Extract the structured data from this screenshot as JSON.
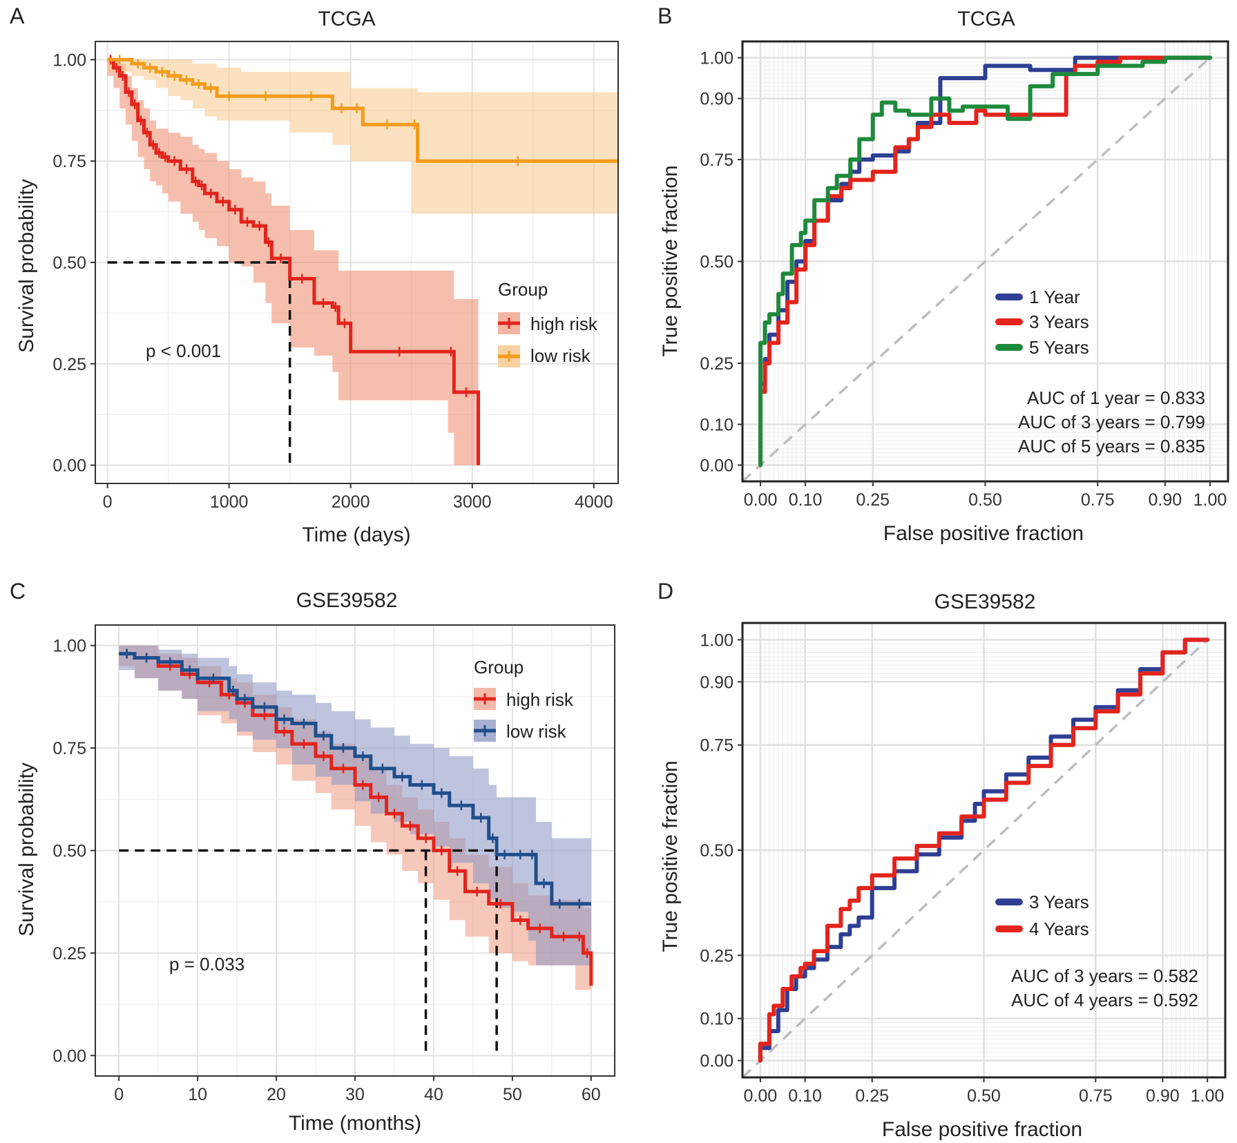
{
  "panels": [
    {
      "id": "A",
      "letter": "A",
      "title": "TCGA",
      "kind": "km",
      "xlabel": "Time (days)",
      "ylabel": "Survival probability",
      "xlim": [
        -100,
        4200
      ],
      "xticks": [
        0,
        1000,
        2000,
        3000,
        4000
      ],
      "xtick_labels": [
        "0",
        "1000",
        "2000",
        "3000",
        "4000"
      ],
      "ylim": [
        -0.045,
        1.045
      ],
      "yticks": [
        0,
        0.25,
        0.5,
        0.75,
        1
      ],
      "ytick_labels": [
        "0.00",
        "0.25",
        "0.50",
        "0.75",
        "1.00"
      ],
      "pvalue": "p < 0.001",
      "legend": {
        "title": "Group",
        "items": [
          "high risk",
          "low risk"
        ]
      },
      "median_lines": [
        1500
      ]
    },
    {
      "id": "B",
      "letter": "B",
      "title": "TCGA",
      "kind": "roc",
      "xlabel": "False positive fraction",
      "ylabel": "True positive fraction",
      "ticks": [
        0,
        0.1,
        0.25,
        0.5,
        0.75,
        0.9,
        1
      ],
      "tick_labels": [
        "0.00",
        "0.10",
        "0.25",
        "0.50",
        "0.75",
        "0.90",
        "1.00"
      ],
      "legend": {
        "items": [
          "1 Year",
          "3 Years",
          "5 Years"
        ]
      },
      "auc_texts": [
        "AUC of 1 year = 0.833",
        "AUC of 3 years = 0.799",
        "AUC of 5 years = 0.835"
      ]
    },
    {
      "id": "C",
      "letter": "C",
      "title": "GSE39582",
      "kind": "km",
      "xlabel": "Time (months)",
      "ylabel": "Survival probability",
      "xlim": [
        -3,
        63
      ],
      "xticks": [
        0,
        10,
        20,
        30,
        40,
        50,
        60
      ],
      "xtick_labels": [
        "0",
        "10",
        "20",
        "30",
        "40",
        "50",
        "60"
      ],
      "ylim": [
        -0.05,
        1.05
      ],
      "yticks": [
        0,
        0.25,
        0.5,
        0.75,
        1
      ],
      "ytick_labels": [
        "0.00",
        "0.25",
        "0.50",
        "0.75",
        "1.00"
      ],
      "pvalue": "p = 0.033",
      "legend": {
        "title": "Group",
        "items": [
          "high risk",
          "low risk"
        ]
      },
      "median_lines": [
        39,
        48
      ]
    },
    {
      "id": "D",
      "letter": "D",
      "title": "GSE39582",
      "kind": "roc",
      "xlabel": "False positive fraction",
      "ylabel": "True positive fraction",
      "ticks": [
        0,
        0.1,
        0.25,
        0.5,
        0.75,
        0.9,
        1
      ],
      "tick_labels": [
        "0.00",
        "0.10",
        "0.25",
        "0.50",
        "0.75",
        "0.90",
        "1.00"
      ],
      "legend": {
        "items": [
          "3 Years",
          "4 Years"
        ]
      },
      "auc_texts": [
        "AUC of 3 years = 0.582",
        "AUC of 4 years = 0.592"
      ]
    }
  ],
  "chart_data": [
    {
      "panel": "A",
      "type": "line",
      "title": "TCGA",
      "xlabel": "Time (days)",
      "ylabel": "Survival probability",
      "xlim": [
        -100,
        4200
      ],
      "ylim": [
        0,
        1
      ],
      "grid": true,
      "legend_position": "right",
      "annotation": "p < 0.001",
      "series": [
        {
          "name": "high risk",
          "color": "#e3241c",
          "band_color": "#ef8a6a",
          "x": [
            0,
            50,
            100,
            150,
            200,
            250,
            300,
            350,
            400,
            450,
            500,
            600,
            700,
            750,
            800,
            900,
            1000,
            1100,
            1200,
            1300,
            1350,
            1500,
            1700,
            1850,
            1900,
            2000,
            2800,
            2850,
            3050
          ],
          "y": [
            1.0,
            0.98,
            0.96,
            0.92,
            0.89,
            0.85,
            0.82,
            0.79,
            0.77,
            0.76,
            0.75,
            0.73,
            0.7,
            0.69,
            0.67,
            0.65,
            0.63,
            0.6,
            0.59,
            0.55,
            0.51,
            0.46,
            0.4,
            0.39,
            0.35,
            0.28,
            0.28,
            0.18,
            0.0
          ],
          "lower": [
            1.0,
            0.96,
            0.93,
            0.88,
            0.84,
            0.8,
            0.76,
            0.73,
            0.7,
            0.69,
            0.67,
            0.65,
            0.62,
            0.6,
            0.58,
            0.56,
            0.54,
            0.5,
            0.49,
            0.45,
            0.4,
            0.35,
            0.29,
            0.27,
            0.23,
            0.16,
            0.16,
            0.08,
            0.0
          ],
          "upper": [
            1.0,
            1.0,
            0.99,
            0.96,
            0.93,
            0.9,
            0.88,
            0.85,
            0.83,
            0.83,
            0.82,
            0.81,
            0.79,
            0.78,
            0.77,
            0.75,
            0.73,
            0.71,
            0.7,
            0.67,
            0.64,
            0.58,
            0.53,
            0.53,
            0.48,
            0.48,
            0.48,
            0.41,
            0.41
          ]
        },
        {
          "name": "low risk",
          "color": "#f39c1b",
          "band_color": "#f8c98a",
          "x": [
            0,
            200,
            300,
            400,
            500,
            600,
            700,
            800,
            900,
            1100,
            1500,
            1850,
            2000,
            2100,
            2500,
            2550,
            4200
          ],
          "y": [
            1.0,
            0.99,
            0.98,
            0.97,
            0.96,
            0.95,
            0.94,
            0.93,
            0.91,
            0.91,
            0.91,
            0.88,
            0.88,
            0.84,
            0.84,
            0.75,
            0.75
          ],
          "lower": [
            1.0,
            0.97,
            0.96,
            0.95,
            0.93,
            0.91,
            0.9,
            0.88,
            0.86,
            0.85,
            0.85,
            0.82,
            0.79,
            0.75,
            0.75,
            0.62,
            0.62
          ],
          "upper": [
            1.0,
            1.0,
            1.0,
            1.0,
            1.0,
            1.0,
            0.99,
            0.99,
            0.98,
            0.97,
            0.97,
            0.97,
            0.93,
            0.93,
            0.93,
            0.92,
            0.92
          ]
        }
      ]
    },
    {
      "panel": "B",
      "type": "line",
      "title": "TCGA",
      "xlabel": "False positive fraction",
      "ylabel": "True positive fraction",
      "xlim": [
        0,
        1
      ],
      "ylim": [
        0,
        1
      ],
      "scale": "style_roc",
      "grid": true,
      "legend_position": "inside right",
      "series": [
        {
          "name": "1 Year",
          "color": "#2e3f93",
          "auc": 0.833,
          "x": [
            0,
            0,
            0.01,
            0.02,
            0.04,
            0.06,
            0.08,
            0.1,
            0.12,
            0.15,
            0.18,
            0.2,
            0.22,
            0.25,
            0.3,
            0.33,
            0.35,
            0.38,
            0.4,
            0.42,
            0.5,
            0.54,
            0.6,
            0.65,
            0.7,
            0.75,
            0.8,
            0.85,
            0.9,
            0.95,
            1
          ],
          "y": [
            0,
            0.12,
            0.2,
            0.26,
            0.32,
            0.38,
            0.45,
            0.5,
            0.55,
            0.6,
            0.65,
            0.69,
            0.72,
            0.75,
            0.76,
            0.77,
            0.8,
            0.84,
            0.84,
            0.95,
            0.95,
            0.98,
            0.98,
            0.97,
            0.97,
            1.0,
            1.0,
            1.0,
            1.0,
            1.0,
            1.0
          ]
        },
        {
          "name": "3 Years",
          "color": "#e3241c",
          "auc": 0.799,
          "x": [
            0,
            0,
            0.01,
            0.02,
            0.04,
            0.06,
            0.08,
            0.1,
            0.12,
            0.15,
            0.18,
            0.2,
            0.23,
            0.25,
            0.3,
            0.33,
            0.35,
            0.38,
            0.42,
            0.48,
            0.5,
            0.55,
            0.6,
            0.65,
            0.68,
            0.7,
            0.75,
            0.8,
            0.85,
            0.9,
            1
          ],
          "y": [
            0,
            0.1,
            0.18,
            0.25,
            0.3,
            0.35,
            0.4,
            0.48,
            0.54,
            0.6,
            0.66,
            0.68,
            0.7,
            0.7,
            0.72,
            0.78,
            0.8,
            0.83,
            0.86,
            0.84,
            0.87,
            0.86,
            0.86,
            0.86,
            0.86,
            0.96,
            0.98,
            0.99,
            1.0,
            1.0,
            1.0
          ]
        },
        {
          "name": "5 Years",
          "color": "#1e8a3c",
          "auc": 0.835,
          "x": [
            0,
            0,
            0.01,
            0.02,
            0.04,
            0.05,
            0.07,
            0.09,
            0.1,
            0.12,
            0.15,
            0.17,
            0.2,
            0.22,
            0.25,
            0.27,
            0.28,
            0.3,
            0.33,
            0.38,
            0.42,
            0.45,
            0.5,
            0.55,
            0.6,
            0.65,
            0.7,
            0.75,
            0.8,
            0.85,
            0.9,
            1
          ],
          "y": [
            0,
            0.26,
            0.3,
            0.35,
            0.37,
            0.42,
            0.47,
            0.54,
            0.57,
            0.6,
            0.65,
            0.68,
            0.71,
            0.75,
            0.8,
            0.86,
            0.89,
            0.89,
            0.87,
            0.86,
            0.9,
            0.87,
            0.88,
            0.88,
            0.85,
            0.93,
            0.96,
            0.96,
            0.98,
            0.98,
            0.99,
            1.0
          ]
        }
      ]
    },
    {
      "panel": "C",
      "type": "line",
      "title": "GSE39582",
      "xlabel": "Time (months)",
      "ylabel": "Survival probability",
      "xlim": [
        -3,
        63
      ],
      "ylim": [
        0,
        1
      ],
      "grid": true,
      "legend_position": "top-right",
      "annotation": "p = 0.033",
      "series": [
        {
          "name": "high risk",
          "color": "#e3241c",
          "band_color": "#ef9a82",
          "x": [
            0,
            2,
            5,
            8,
            10,
            13,
            15,
            17,
            20,
            22,
            25,
            27,
            30,
            32,
            34,
            36,
            38,
            40,
            42,
            44,
            47,
            50,
            52,
            55,
            58,
            59,
            60
          ],
          "y": [
            0.98,
            0.97,
            0.95,
            0.93,
            0.91,
            0.88,
            0.86,
            0.83,
            0.79,
            0.76,
            0.73,
            0.7,
            0.66,
            0.63,
            0.59,
            0.56,
            0.53,
            0.5,
            0.45,
            0.4,
            0.37,
            0.33,
            0.31,
            0.29,
            0.29,
            0.25,
            0.17
          ],
          "lower": [
            0.96,
            0.95,
            0.92,
            0.89,
            0.87,
            0.83,
            0.81,
            0.78,
            0.74,
            0.71,
            0.67,
            0.64,
            0.6,
            0.56,
            0.52,
            0.49,
            0.45,
            0.42,
            0.38,
            0.33,
            0.29,
            0.25,
            0.23,
            0.22,
            0.22,
            0.16,
            0.16
          ],
          "upper": [
            1.0,
            1.0,
            0.98,
            0.97,
            0.95,
            0.92,
            0.91,
            0.88,
            0.85,
            0.82,
            0.79,
            0.76,
            0.73,
            0.7,
            0.66,
            0.63,
            0.6,
            0.57,
            0.53,
            0.49,
            0.46,
            0.42,
            0.39,
            0.38,
            0.38,
            0.36,
            0.36
          ]
        },
        {
          "name": "low risk",
          "color": "#1f4e8c",
          "band_color": "#8a93c2",
          "x": [
            0,
            2,
            5,
            8,
            10,
            14,
            15,
            17,
            20,
            22,
            25,
            27,
            30,
            32,
            35,
            37,
            40,
            42,
            45,
            47,
            48,
            50,
            52,
            53,
            55,
            57,
            60
          ],
          "y": [
            0.98,
            0.97,
            0.96,
            0.94,
            0.92,
            0.89,
            0.87,
            0.85,
            0.82,
            0.81,
            0.78,
            0.75,
            0.73,
            0.7,
            0.68,
            0.66,
            0.64,
            0.61,
            0.58,
            0.53,
            0.49,
            0.49,
            0.49,
            0.42,
            0.37,
            0.37,
            0.37
          ],
          "lower": [
            0.96,
            0.94,
            0.92,
            0.89,
            0.87,
            0.84,
            0.82,
            0.79,
            0.77,
            0.75,
            0.71,
            0.68,
            0.66,
            0.62,
            0.59,
            0.57,
            0.54,
            0.51,
            0.47,
            0.42,
            0.38,
            0.36,
            0.35,
            0.28,
            0.22,
            0.22,
            0.22
          ],
          "upper": [
            1.0,
            1.0,
            0.99,
            0.98,
            0.97,
            0.95,
            0.93,
            0.91,
            0.89,
            0.88,
            0.86,
            0.84,
            0.82,
            0.8,
            0.78,
            0.76,
            0.75,
            0.73,
            0.7,
            0.66,
            0.63,
            0.63,
            0.63,
            0.57,
            0.53,
            0.53,
            0.53
          ]
        }
      ]
    },
    {
      "panel": "D",
      "type": "line",
      "title": "GSE39582",
      "xlabel": "False positive fraction",
      "ylabel": "True positive fraction",
      "xlim": [
        0,
        1
      ],
      "ylim": [
        0,
        1
      ],
      "scale": "style_roc",
      "grid": true,
      "legend_position": "inside right",
      "series": [
        {
          "name": "3 Years",
          "color": "#2e3f93",
          "auc": 0.582,
          "x": [
            0,
            0.02,
            0.04,
            0.06,
            0.08,
            0.1,
            0.12,
            0.15,
            0.18,
            0.2,
            0.22,
            0.25,
            0.3,
            0.35,
            0.4,
            0.45,
            0.48,
            0.5,
            0.55,
            0.6,
            0.65,
            0.7,
            0.75,
            0.8,
            0.85,
            0.9,
            0.95,
            1
          ],
          "y": [
            0,
            0.03,
            0.07,
            0.12,
            0.17,
            0.2,
            0.22,
            0.24,
            0.27,
            0.3,
            0.32,
            0.34,
            0.41,
            0.45,
            0.49,
            0.53,
            0.57,
            0.61,
            0.64,
            0.68,
            0.72,
            0.77,
            0.81,
            0.84,
            0.88,
            0.93,
            0.97,
            1.0
          ]
        },
        {
          "name": "4 Years",
          "color": "#e3241c",
          "auc": 0.592,
          "x": [
            0,
            0.02,
            0.03,
            0.05,
            0.07,
            0.09,
            0.1,
            0.12,
            0.15,
            0.18,
            0.2,
            0.22,
            0.25,
            0.3,
            0.35,
            0.4,
            0.45,
            0.5,
            0.55,
            0.6,
            0.65,
            0.7,
            0.75,
            0.8,
            0.85,
            0.9,
            0.95,
            1
          ],
          "y": [
            0,
            0.04,
            0.11,
            0.13,
            0.17,
            0.2,
            0.22,
            0.23,
            0.26,
            0.32,
            0.36,
            0.38,
            0.41,
            0.44,
            0.48,
            0.51,
            0.54,
            0.58,
            0.62,
            0.66,
            0.7,
            0.75,
            0.79,
            0.83,
            0.87,
            0.92,
            0.97,
            1.0
          ]
        }
      ]
    }
  ]
}
